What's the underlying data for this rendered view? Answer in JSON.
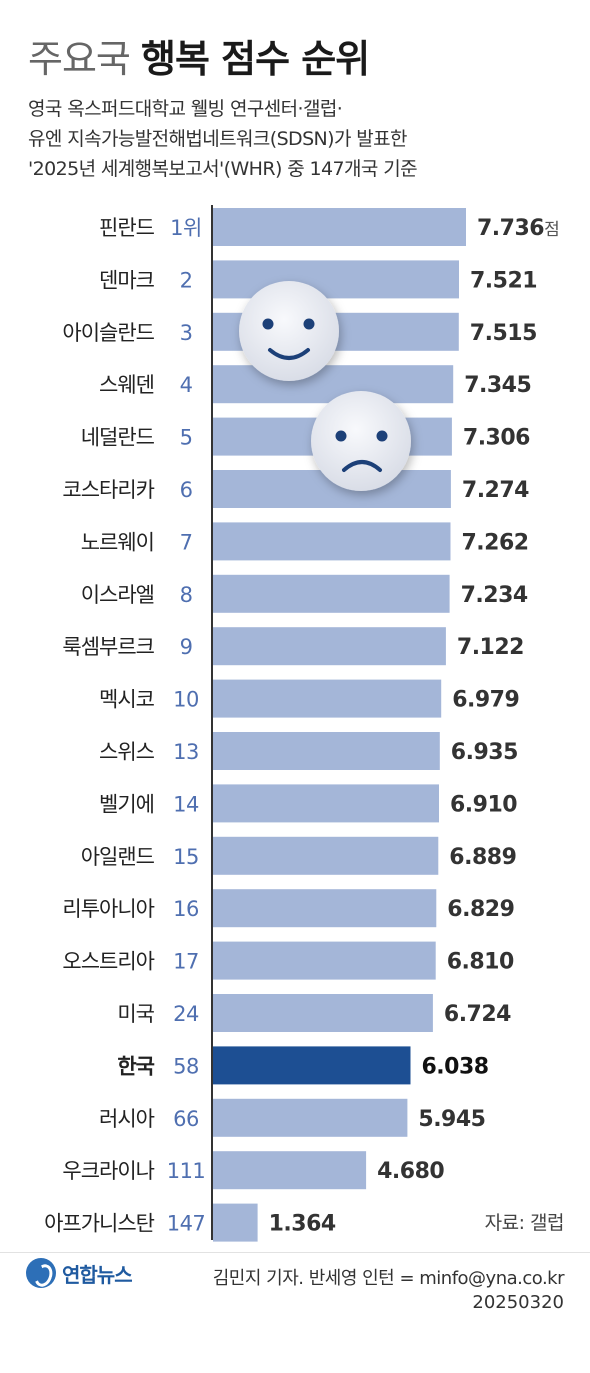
{
  "header": {
    "title_light": "주요국",
    "title_bold": "행복 점수 순위",
    "subtitle_lines": [
      "영국 옥스퍼드대학교 웰빙 연구센터·갤럽·",
      "유엔 지속가능발전해법네트워크(SDSN)가 발표한",
      "'2025년 세계행복보고서'(WHR) 중 147개국 기준"
    ]
  },
  "chart_data": {
    "type": "bar",
    "orientation": "horizontal",
    "categories": [
      "핀란드",
      "덴마크",
      "아이슬란드",
      "스웨덴",
      "네덜란드",
      "코스타리카",
      "노르웨이",
      "이스라엘",
      "룩셈부르크",
      "멕시코",
      "스위스",
      "벨기에",
      "아일랜드",
      "리투아니아",
      "오스트리아",
      "미국",
      "한국",
      "러시아",
      "우크라이나",
      "아프가니스탄"
    ],
    "rank_labels": [
      "1위",
      "2",
      "3",
      "4",
      "5",
      "6",
      "7",
      "8",
      "9",
      "10",
      "13",
      "14",
      "15",
      "16",
      "17",
      "24",
      "58",
      "66",
      "111",
      "147"
    ],
    "values": [
      7.736,
      7.521,
      7.515,
      7.345,
      7.306,
      7.274,
      7.262,
      7.234,
      7.122,
      6.979,
      6.935,
      6.91,
      6.889,
      6.829,
      6.81,
      6.724,
      6.038,
      5.945,
      4.68,
      1.364
    ],
    "value_labels": [
      "7.736",
      "7.521",
      "7.515",
      "7.345",
      "7.306",
      "7.274",
      "7.262",
      "7.234",
      "7.122",
      "6.979",
      "6.935",
      "6.910",
      "6.889",
      "6.829",
      "6.810",
      "6.724",
      "6.038",
      "5.945",
      "4.680",
      "1.364"
    ],
    "unit_suffix": "점",
    "highlight": "한국",
    "xlim": [
      0,
      7.736
    ],
    "grid": false,
    "colors": {
      "bar": "#a4b6d8",
      "highlight_bar": "#1d4f93",
      "rank": "#4f6fb0",
      "value": "#333333",
      "axis": "#333333"
    },
    "decorations": [
      "smiley-face-icon",
      "sad-face-icon"
    ]
  },
  "footer": {
    "source": "자료: 갤럽",
    "logo_text": "연합뉴스",
    "credit": "김민지 기자. 반세영 인턴 = minfo@yna.co.kr",
    "date": "20250320"
  }
}
